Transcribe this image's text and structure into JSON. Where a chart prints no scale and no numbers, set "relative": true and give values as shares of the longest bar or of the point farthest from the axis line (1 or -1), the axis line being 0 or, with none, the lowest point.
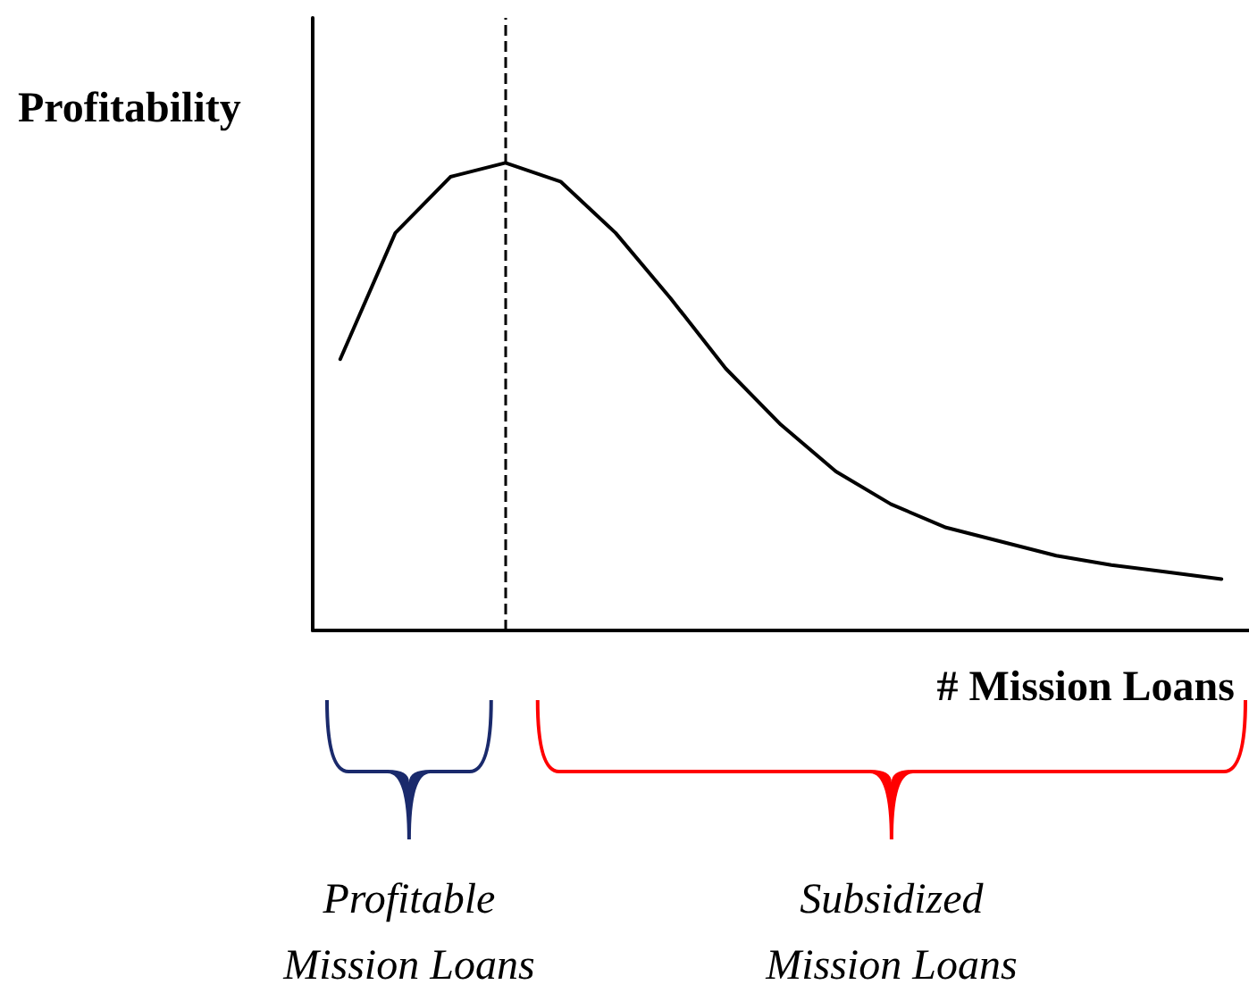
{
  "chart_data": {
    "type": "line",
    "relative": true,
    "ylabel": "Profitability",
    "xlabel": "# Mission Loans",
    "categories": [
      null,
      null,
      null,
      null,
      null,
      null,
      null,
      null,
      null,
      null,
      null,
      null,
      null,
      null,
      null,
      null,
      null
    ],
    "grid": false,
    "marker": "none",
    "line_style": "solid",
    "series": [
      {
        "color": "#000000",
        "values": [
          0.58,
          0.85,
          0.97,
          1,
          0.96,
          0.85,
          0.71,
          0.56,
          0.44,
          0.34,
          0.27,
          0.22,
          0.19,
          0.16,
          0.14,
          0.125,
          0.11
        ]
      }
    ],
    "annotations": [
      "Profitable\nMission Loans",
      "Subsidized\nMission Loans"
    ]
  }
}
